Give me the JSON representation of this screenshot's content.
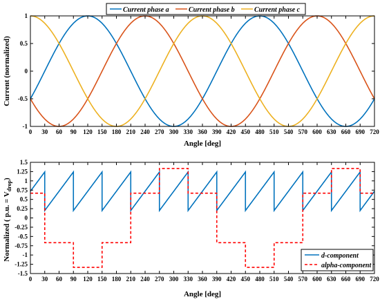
{
  "chart_data": [
    {
      "type": "line",
      "title": "",
      "xlabel": "Angle [deg]",
      "ylabel": "Current (normalized)",
      "xlim": [
        0,
        720
      ],
      "ylim": [
        -1,
        1
      ],
      "xticks": [
        0,
        30,
        60,
        90,
        120,
        150,
        180,
        210,
        240,
        270,
        300,
        330,
        360,
        390,
        420,
        450,
        480,
        510,
        540,
        570,
        600,
        630,
        660,
        690,
        720
      ],
      "yticks": [
        -1,
        -0.5,
        0,
        0.5,
        1
      ],
      "ytick_labels": [
        "-1",
        "-0.5",
        "0",
        "0.5",
        "1"
      ],
      "grid": false,
      "legend_placement": "top-center",
      "series": [
        {
          "name": "Current phase a",
          "color": "#0072BD",
          "style": "solid",
          "function": "sin(x-30)",
          "x": [
            0,
            30,
            60,
            90,
            120,
            150,
            180,
            210,
            240,
            270,
            300,
            330,
            360,
            390,
            420,
            450,
            480,
            510,
            540,
            570,
            600,
            630,
            660,
            690,
            720
          ],
          "y": [
            -0.5,
            0,
            0.5,
            0.87,
            1,
            0.87,
            0.5,
            0,
            -0.5,
            -0.87,
            -1,
            -0.87,
            -0.5,
            0,
            0.5,
            0.87,
            1,
            0.87,
            0.5,
            0,
            -0.5,
            -0.87,
            -1,
            -0.87,
            -0.5
          ]
        },
        {
          "name": "Current phase b",
          "color": "#D95319",
          "style": "solid",
          "function": "sin(x-150)",
          "x": [
            0,
            30,
            60,
            90,
            120,
            150,
            180,
            210,
            240,
            270,
            300,
            330,
            360,
            390,
            420,
            450,
            480,
            510,
            540,
            570,
            600,
            630,
            660,
            690,
            720
          ],
          "y": [
            -0.5,
            -0.87,
            -1,
            -0.87,
            -0.5,
            0,
            0.5,
            0.87,
            1,
            0.87,
            0.5,
            0,
            -0.5,
            -0.87,
            -1,
            -0.87,
            -0.5,
            0,
            0.5,
            0.87,
            1,
            0.87,
            0.5,
            0,
            -0.5
          ]
        },
        {
          "name": "Current phase c",
          "color": "#EDB120",
          "style": "solid",
          "function": "sin(x+90)",
          "x": [
            0,
            30,
            60,
            90,
            120,
            150,
            180,
            210,
            240,
            270,
            300,
            330,
            360,
            390,
            420,
            450,
            480,
            510,
            540,
            570,
            600,
            630,
            660,
            690,
            720
          ],
          "y": [
            1,
            0.87,
            0.5,
            0,
            -0.5,
            -0.87,
            -1,
            -0.87,
            -0.5,
            0,
            0.5,
            0.87,
            1,
            0.87,
            0.5,
            0,
            -0.5,
            -0.87,
            -1,
            -0.87,
            -0.5,
            0,
            0.5,
            0.87,
            1
          ]
        }
      ]
    },
    {
      "type": "line",
      "title": "",
      "xlabel": "Angle [deg]",
      "ylabel_main": "Normalized ( p.u. = V",
      "ylabel_sub": "drop",
      "ylabel_end": ")",
      "xlim": [
        0,
        720
      ],
      "ylim": [
        -1.5,
        1.5
      ],
      "xticks": [
        0,
        30,
        60,
        90,
        120,
        150,
        180,
        210,
        240,
        270,
        300,
        330,
        360,
        390,
        420,
        450,
        480,
        510,
        540,
        570,
        600,
        630,
        660,
        690,
        720
      ],
      "yticks": [
        -1.5,
        -1.25,
        -1,
        -0.75,
        -0.5,
        -0.25,
        0,
        0.25,
        0.5,
        0.75,
        1,
        1.25,
        1.5
      ],
      "ytick_labels": [
        "-1.5",
        "-1.25",
        "-1",
        "-0.75",
        "-0.5",
        "-0.25",
        "0",
        "0.25",
        "0.5",
        "0.75",
        "1",
        "1.25",
        "1.5"
      ],
      "grid": false,
      "legend_placement": "bottom-right",
      "series": [
        {
          "name": "d-component",
          "color": "#0072BD",
          "style": "solid",
          "segment_period_deg": 60,
          "first_boundary_deg": 30,
          "segment_start_value": 0.2,
          "segment_end_value": 1.24,
          "x": [
            0,
            30,
            30,
            90,
            90,
            150,
            150,
            210,
            210,
            270,
            270,
            330,
            330,
            390,
            390,
            450,
            450,
            510,
            510,
            570,
            570,
            630,
            630,
            690,
            690,
            720
          ],
          "y": [
            0.7,
            1.24,
            0.2,
            1.24,
            0.2,
            1.24,
            0.2,
            1.24,
            0.2,
            1.24,
            0.2,
            1.24,
            0.2,
            1.24,
            0.2,
            1.24,
            0.2,
            1.24,
            0.2,
            1.24,
            0.2,
            1.24,
            0.2,
            1.24,
            0.2,
            0.7
          ]
        },
        {
          "name": "alpha-component",
          "color": "#FF0000",
          "style": "dashed",
          "x": [
            0,
            30,
            30,
            90,
            90,
            150,
            150,
            210,
            210,
            270,
            270,
            330,
            330,
            390,
            390,
            450,
            450,
            510,
            510,
            570,
            570,
            630,
            630,
            690,
            690,
            720
          ],
          "y": [
            0.667,
            0.667,
            -0.667,
            -0.667,
            -1.333,
            -1.333,
            -0.667,
            -0.667,
            0.667,
            0.667,
            1.333,
            1.333,
            0.667,
            0.667,
            -0.667,
            -0.667,
            -1.333,
            -1.333,
            -0.667,
            -0.667,
            0.667,
            0.667,
            1.333,
            1.333,
            0.667,
            0.667
          ]
        }
      ]
    }
  ]
}
